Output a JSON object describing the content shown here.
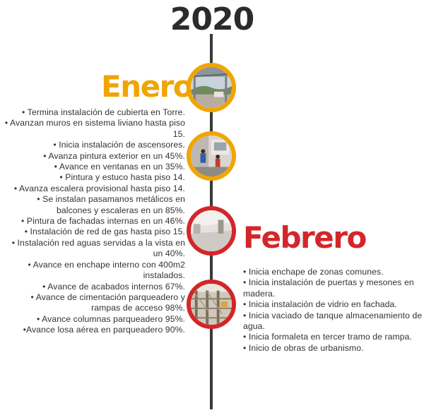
{
  "title": {
    "year": "2020"
  },
  "months": {
    "january": {
      "label": "Enero",
      "color": "#f0a500"
    },
    "february": {
      "label": "Febrero",
      "color": "#d4262a"
    }
  },
  "colors": {
    "axis": "#3a3a3a",
    "text": "#333333",
    "year": "#2b2b2b"
  },
  "left_items": [
    "• Termina instalación de cubierta en Torre.",
    "• Avanzan muros en sistema liviano hasta piso 15.",
    "• Inicia instalación de ascensores.",
    "• Avanza pintura exterior en un 45%.",
    "• Avance en ventanas en un 35%.",
    "• Pintura y estuco hasta piso 14.",
    "• Avanza escalera provisional hasta piso 14.",
    "• Se instalan pasamanos metálicos en balcones y escaleras en un 85%.",
    "• Pintura de fachadas internas en un 46%.",
    "• Instalación de red de gas hasta piso 15.",
    "• Instalación red aguas servidas a la vista en un 40%.",
    "• Avance en enchape interno con 400m2 instalados.",
    "• Avance de acabados internos 67%.",
    "• Avance de cimentación parqueadero y rampas de acceso 98%.",
    "• Avance columnas parqueadero 95%.",
    "•Avance losa aérea en parqueadero 90%."
  ],
  "right_items": [
    "• Inicia enchape de zonas comunes.",
    "• Inicia instalación de puertas y mesones en madera.",
    "• Inicia instalación de vidrio en fachada.",
    "• Inicia vaciado de tanque almacenamiento de agua.",
    "• Inicia formaleta en tercer tramo de rampa.",
    "• Inicio de obras de urbanismo."
  ]
}
